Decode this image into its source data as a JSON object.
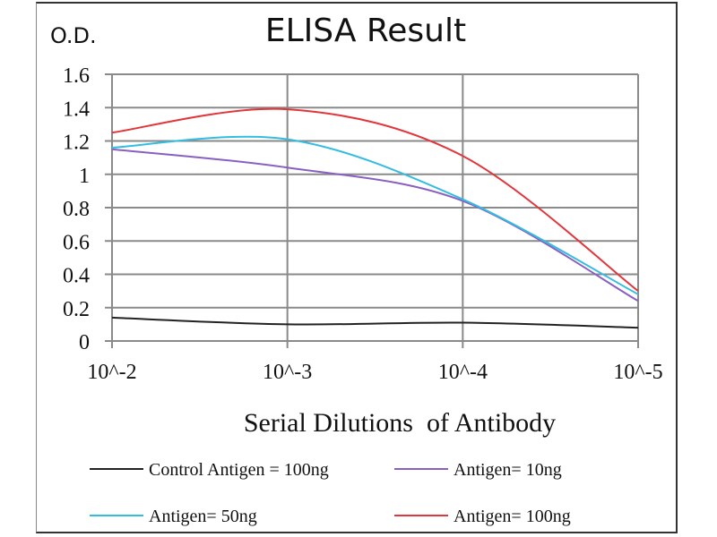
{
  "chart_data": {
    "type": "line",
    "title": "ELISA Result",
    "ylabel": "O.D.",
    "xlabel": "Serial Dilutions  of Antibody",
    "categories": [
      "10^-2",
      "10^-3",
      "10^-4",
      "10^-5"
    ],
    "ylim": [
      0,
      1.6
    ],
    "yticks": [
      "0",
      "0.2",
      "0.4",
      "0.6",
      "0.8",
      "1",
      "1.2",
      "1.4",
      "1.6"
    ],
    "grid": true,
    "legend_position": "bottom",
    "series": [
      {
        "name": "Control Antigen = 100ng",
        "color": "#222222",
        "values": [
          0.14,
          0.1,
          0.11,
          0.08
        ]
      },
      {
        "name": "Antigen= 10ng",
        "color": "#8a5fc2",
        "values": [
          1.15,
          1.04,
          0.84,
          0.24
        ]
      },
      {
        "name": "Antigen= 50ng",
        "color": "#33bde0",
        "values": [
          1.16,
          1.21,
          0.85,
          0.28
        ]
      },
      {
        "name": "Antigen= 100ng",
        "color": "#e2363b",
        "values": [
          1.25,
          1.39,
          1.11,
          0.3
        ]
      }
    ]
  }
}
